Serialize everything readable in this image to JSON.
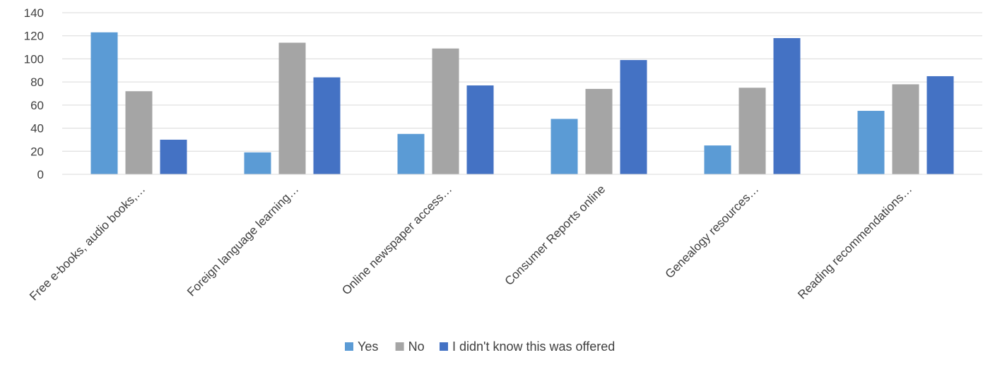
{
  "chart_data": {
    "type": "bar",
    "categories": [
      "Free e-books, audio books,…",
      "Foreign language learning…",
      "Online newspaper access…",
      "Consumer Reports online",
      "Genealogy resources…",
      "Reading recommendations…"
    ],
    "series": [
      {
        "name": "Yes",
        "color": "#5b9bd5",
        "values": [
          123,
          19,
          35,
          48,
          25,
          55
        ]
      },
      {
        "name": "No",
        "color": "#a5a5a5",
        "values": [
          72,
          114,
          109,
          74,
          75,
          78
        ]
      },
      {
        "name": "I didn't know this was offered",
        "color": "#4472c4",
        "values": [
          30,
          84,
          77,
          99,
          118,
          85
        ]
      }
    ],
    "ylim": [
      0,
      140
    ],
    "yticks": [
      0,
      20,
      40,
      60,
      80,
      100,
      120,
      140
    ],
    "grid": true,
    "legend_position": "bottom"
  }
}
